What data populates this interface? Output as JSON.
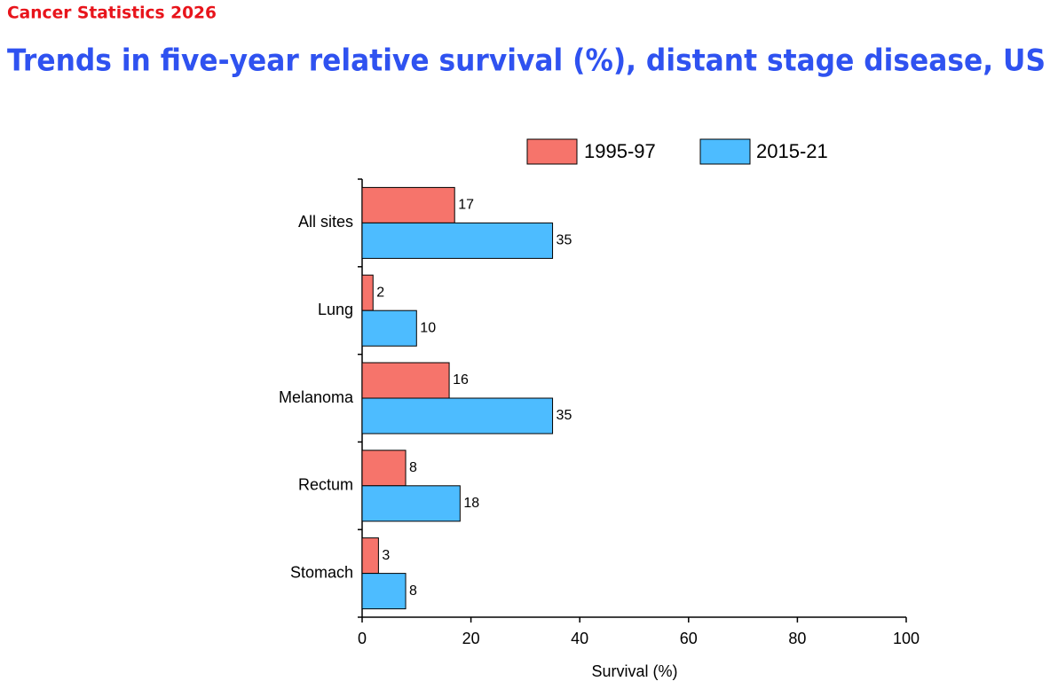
{
  "header": {
    "kicker": "Cancer Statistics 2026",
    "title": "Trends in five-year relative survival (%), distant stage disease, US"
  },
  "chart_data": {
    "type": "bar",
    "orientation": "horizontal",
    "categories": [
      "All sites",
      "Lung",
      "Melanoma",
      "Rectum",
      "Stomach"
    ],
    "series": [
      {
        "name": "1995-97",
        "color": "#f6746b",
        "values": [
          17,
          2,
          16,
          8,
          3
        ]
      },
      {
        "name": "2015-21",
        "color": "#4dbcff",
        "values": [
          35,
          10,
          35,
          18,
          8
        ]
      }
    ],
    "xlabel": "Survival (%)",
    "xlim": [
      0,
      100
    ],
    "xticks": [
      0,
      20,
      40,
      60,
      80,
      100
    ]
  }
}
